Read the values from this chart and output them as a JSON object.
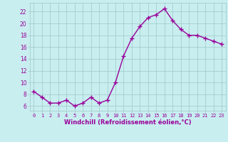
{
  "x": [
    0,
    1,
    2,
    3,
    4,
    5,
    6,
    7,
    8,
    9,
    10,
    11,
    12,
    13,
    14,
    15,
    16,
    17,
    18,
    19,
    20,
    21,
    22,
    23
  ],
  "y": [
    8.5,
    7.5,
    6.5,
    6.5,
    7.0,
    6.0,
    6.5,
    7.5,
    6.5,
    7.0,
    10.0,
    14.5,
    17.5,
    19.5,
    21.0,
    21.5,
    22.5,
    20.5,
    19.0,
    18.0,
    18.0,
    17.5,
    17.0,
    16.5
  ],
  "line_color": "#990099",
  "marker": "+",
  "marker_size": 4,
  "marker_lw": 1.0,
  "line_width": 1.0,
  "xlabel": "Windchill (Refroidissement éolien,°C)",
  "ylabel_ticks": [
    6,
    8,
    10,
    12,
    14,
    16,
    18,
    20,
    22
  ],
  "xlabels": [
    "0",
    "1",
    "2",
    "3",
    "4",
    "5",
    "6",
    "7",
    "8",
    "9",
    "10",
    "11",
    "12",
    "13",
    "14",
    "15",
    "16",
    "17",
    "18",
    "19",
    "20",
    "21",
    "22",
    "23"
  ],
  "ylim": [
    5.2,
    23.5
  ],
  "xlim": [
    -0.5,
    23.5
  ],
  "bg_color": "#c8eef0",
  "grid_color": "#a0c8c8",
  "tick_color": "#990099",
  "xlabel_color": "#990099",
  "xtick_fontsize": 5.0,
  "ytick_fontsize": 5.5,
  "xlabel_fontsize": 6.0
}
